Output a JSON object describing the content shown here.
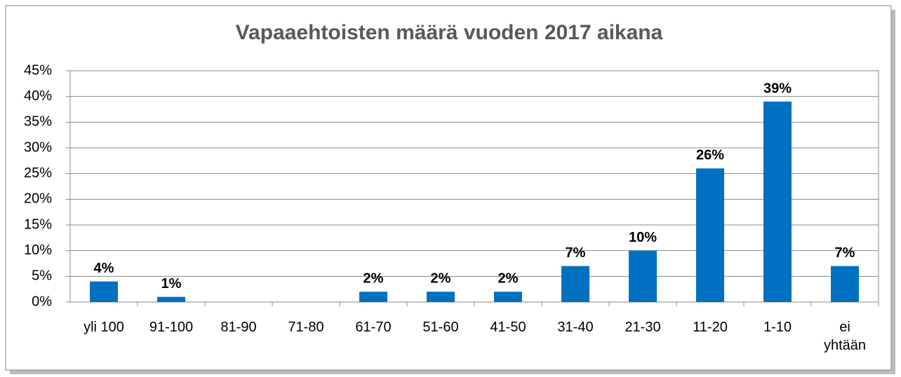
{
  "chart_data": {
    "type": "bar",
    "title": "Vapaaehtoisten määrä vuoden 2017 aikana",
    "categories": [
      "yli 100",
      "91-100",
      "81-90",
      "71-80",
      "61-70",
      "51-60",
      "41-50",
      "31-40",
      "21-30",
      "11-20",
      "1-10",
      "ei yhtään"
    ],
    "values": [
      4,
      1,
      0,
      0,
      2,
      2,
      2,
      7,
      10,
      26,
      39,
      7
    ],
    "value_labels": [
      "4%",
      "1%",
      null,
      null,
      "2%",
      "2%",
      "2%",
      "7%",
      "10%",
      "26%",
      "39%",
      "7%"
    ],
    "color": "#0070c0",
    "ylim": [
      0,
      45
    ],
    "yticks": [
      {
        "value": 0,
        "label": "0%"
      },
      {
        "value": 5,
        "label": "5%"
      },
      {
        "value": 10,
        "label": "10%"
      },
      {
        "value": 15,
        "label": "15%"
      },
      {
        "value": 20,
        "label": "20%"
      },
      {
        "value": 25,
        "label": "25%"
      },
      {
        "value": 30,
        "label": "30%"
      },
      {
        "value": 35,
        "label": "35%"
      },
      {
        "value": 40,
        "label": "40%"
      },
      {
        "value": 45,
        "label": "45%"
      }
    ],
    "grid": true
  }
}
